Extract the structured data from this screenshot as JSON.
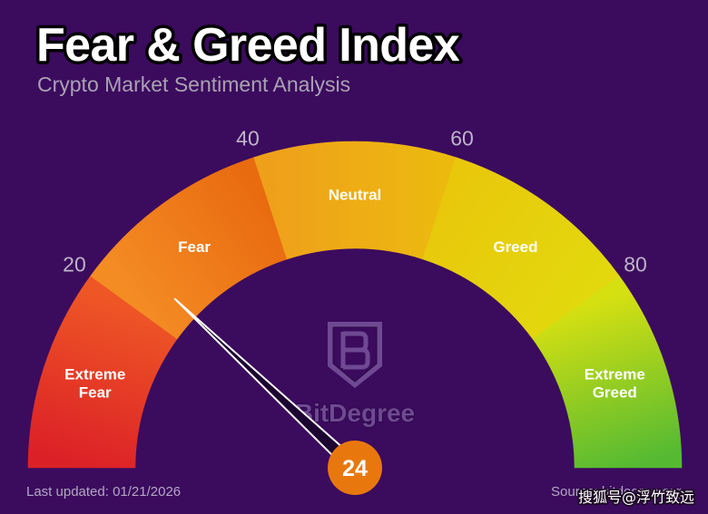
{
  "chart_data": {
    "type": "pie",
    "title": "Fear & Greed Index",
    "subtitle": "Crypto Market Sentiment Analysis",
    "range": [
      0,
      100
    ],
    "value": 24,
    "value_label": "24",
    "tick_labels": [
      {
        "value": 20,
        "label": "20"
      },
      {
        "value": 40,
        "label": "40"
      },
      {
        "value": 60,
        "label": "60"
      },
      {
        "value": 80,
        "label": "80"
      }
    ],
    "segments": [
      {
        "label_lines": [
          "Extreme",
          "Fear"
        ],
        "from": 0,
        "to": 20,
        "colors": [
          "#dc2027",
          "#ee5626"
        ]
      },
      {
        "label_lines": [
          "Fear"
        ],
        "from": 20,
        "to": 40,
        "colors": [
          "#f48c24",
          "#e96b10"
        ]
      },
      {
        "label_lines": [
          "Neutral"
        ],
        "from": 40,
        "to": 60,
        "colors": [
          "#efa01b",
          "#ecb90f"
        ]
      },
      {
        "label_lines": [
          "Greed"
        ],
        "from": 60,
        "to": 80,
        "colors": [
          "#e9c80c",
          "#e2d80d"
        ]
      },
      {
        "label_lines": [
          "Extreme",
          "Greed"
        ],
        "from": 80,
        "to": 100,
        "colors": [
          "#d6e011",
          "#55ba32"
        ]
      }
    ]
  },
  "logo": {
    "name": "BitDegree",
    "icon": "bitdegree-shield-icon"
  },
  "footer": {
    "last_updated": "Last updated: 01/21/2026",
    "source": "Source: bitdegree.org"
  },
  "watermark": "搜狐号@浮竹致远",
  "colors": {
    "background": "#3b0b5e",
    "title_fill": "#ffffff",
    "title_outline": "#000000",
    "subtitle": "#a9a2b2",
    "tick_labels": "#bdb4c7",
    "segment_labels": "#ffffff",
    "needle_outline": "#ffffff",
    "needle_fill": "#1c0530",
    "value_badge": "#e8780e",
    "value_text": "#ffffff",
    "footer_text": "#b3a8c2",
    "logo": "#7e5ba3"
  }
}
